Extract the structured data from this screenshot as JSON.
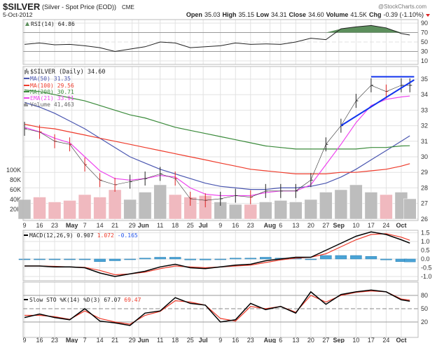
{
  "header": {
    "symbol": "$SILVER",
    "description": "(Silver - Spot Price (EOD))",
    "exchange": "CME",
    "date": "5-Oct-2012",
    "watermark": "@StockCharts.com",
    "open_label": "Open",
    "open": "35.03",
    "high_label": "High",
    "high": "35.15",
    "low_label": "Low",
    "low": "34.31",
    "close_label": "Close",
    "close": "34.60",
    "volume_label": "Volume",
    "volume": "41.5K",
    "chg_label": "Chg",
    "chg": "-0.39 (-1.10%)"
  },
  "colors": {
    "ma50": "#4a56b0",
    "ma100": "#ee3b2b",
    "ma200": "#3a8a3a",
    "ema21": "#ee44ee",
    "trend": "#1133ee",
    "vol_up": "#bdbdbd",
    "vol_down": "#f0b9bf",
    "rsi_fill_hi": "#5c8f5c",
    "rsi_fill_lo": "#d46a6a",
    "hist": "#4aa3d6"
  },
  "chart_data": {
    "type": "line",
    "title": "$SILVER (Daily) 34.60",
    "x_days": [
      0,
      7,
      14,
      21,
      28,
      35,
      42,
      49,
      56,
      63,
      70,
      77,
      84,
      91,
      98,
      105,
      112,
      119,
      126,
      133,
      140,
      147,
      154,
      161,
      168,
      175,
      179
    ],
    "x_ticks": [
      {
        "d": 0,
        "label": "9"
      },
      {
        "d": 7,
        "label": "16"
      },
      {
        "d": 14,
        "label": "23"
      },
      {
        "d": 22,
        "label": "May"
      },
      {
        "d": 28,
        "label": "7"
      },
      {
        "d": 35,
        "label": "14"
      },
      {
        "d": 42,
        "label": "21"
      },
      {
        "d": 50,
        "label": "29"
      },
      {
        "d": 53,
        "label": "Jun"
      },
      {
        "d": 63,
        "label": "11"
      },
      {
        "d": 70,
        "label": "18"
      },
      {
        "d": 77,
        "label": "25"
      },
      {
        "d": 83,
        "label": "Jul"
      },
      {
        "d": 91,
        "label": "9"
      },
      {
        "d": 98,
        "label": "16"
      },
      {
        "d": 105,
        "label": "23"
      },
      {
        "d": 114,
        "label": "Aug"
      },
      {
        "d": 119,
        "label": "6"
      },
      {
        "d": 126,
        "label": "13"
      },
      {
        "d": 133,
        "label": "20"
      },
      {
        "d": 140,
        "label": "27"
      },
      {
        "d": 146,
        "label": "Sep"
      },
      {
        "d": 154,
        "label": "10"
      },
      {
        "d": 161,
        "label": "17"
      },
      {
        "d": 168,
        "label": "24"
      },
      {
        "d": 175,
        "label": "Oct"
      }
    ],
    "price": {
      "ylim": [
        26,
        35.6
      ],
      "yticks": [
        26,
        27,
        28,
        29,
        30,
        31,
        32,
        33,
        34,
        35
      ],
      "close": [
        31.8,
        31.6,
        31.0,
        30.8,
        29.5,
        28.5,
        28.2,
        28.4,
        28.6,
        28.9,
        28.6,
        27.3,
        27.2,
        27.3,
        27.5,
        27.4,
        27.8,
        27.8,
        27.8,
        28.5,
        30.8,
        32.0,
        33.6,
        34.6,
        34.2,
        34.6,
        34.6
      ],
      "series": [
        {
          "name": "MA(50)",
          "last": "31.35",
          "color_key": "ma50",
          "values": [
            33.5,
            33.2,
            32.8,
            32.3,
            31.8,
            31.2,
            30.6,
            30.0,
            29.6,
            29.2,
            28.9,
            28.6,
            28.3,
            28.1,
            28.0,
            27.9,
            27.9,
            28.0,
            28.0,
            28.1,
            28.3,
            28.7,
            29.2,
            29.8,
            30.4,
            31.0,
            31.35
          ]
        },
        {
          "name": "MA(100)",
          "last": "29.56",
          "color_key": "ma100",
          "values": [
            32.1,
            31.9,
            31.8,
            31.6,
            31.4,
            31.2,
            31.0,
            30.8,
            30.6,
            30.4,
            30.2,
            30.0,
            29.8,
            29.6,
            29.4,
            29.2,
            29.1,
            29.0,
            28.9,
            28.9,
            28.9,
            29.0,
            29.0,
            29.1,
            29.2,
            29.4,
            29.56
          ]
        },
        {
          "name": "MA(200)",
          "last": "30.71",
          "color_key": "ma200",
          "values": [
            34.3,
            34.2,
            34.0,
            33.8,
            33.6,
            33.3,
            33.0,
            32.7,
            32.5,
            32.2,
            31.9,
            31.7,
            31.5,
            31.3,
            31.1,
            30.9,
            30.7,
            30.6,
            30.5,
            30.5,
            30.5,
            30.5,
            30.5,
            30.6,
            30.6,
            30.7,
            30.71
          ]
        },
        {
          "name": "EMA(21)",
          "last": "33.91",
          "color_key": "ema21",
          "values": [
            31.9,
            31.6,
            31.2,
            30.9,
            30.0,
            29.1,
            28.6,
            28.5,
            28.6,
            28.8,
            28.7,
            28.0,
            27.6,
            27.5,
            27.5,
            27.5,
            27.7,
            27.8,
            27.8,
            28.2,
            29.5,
            30.8,
            32.2,
            33.3,
            33.7,
            33.85,
            33.91
          ]
        }
      ],
      "trendlines": [
        {
          "name": "resistance",
          "d": [
            161,
            181
          ],
          "y": [
            35.15,
            35.15
          ]
        },
        {
          "name": "support",
          "d": [
            147,
            181
          ],
          "y": [
            32.0,
            34.95
          ]
        }
      ]
    },
    "volume": {
      "label": "Volume",
      "last": "41,463",
      "yticks": [
        {
          "v": 20,
          "label": "20K"
        },
        {
          "v": 40,
          "label": "40K"
        },
        {
          "v": 60,
          "label": "60K"
        },
        {
          "v": 80,
          "label": "80K"
        },
        {
          "v": 100,
          "label": "100K"
        }
      ],
      "values_k": [
        40,
        45,
        35,
        38,
        50,
        45,
        60,
        40,
        55,
        70,
        50,
        45,
        48,
        35,
        30,
        30,
        35,
        38,
        35,
        40,
        55,
        60,
        70,
        55,
        50,
        55,
        41.463
      ]
    },
    "rsi": {
      "label": "RSI(14)",
      "last": "64.86",
      "yticks": [
        10,
        30,
        50,
        70,
        90
      ],
      "values": [
        45,
        48,
        44,
        45,
        42,
        38,
        30,
        35,
        40,
        50,
        48,
        38,
        40,
        42,
        48,
        45,
        46,
        45,
        50,
        58,
        55,
        78,
        82,
        85,
        80,
        68,
        64.86
      ]
    },
    "macd": {
      "label": "MACD(12,26,9)",
      "macd_last": "0.907",
      "signal_last": "1.072",
      "hist_last": "-0.165",
      "yticks": [
        {
          "v": -1.0,
          "label": "-1.0"
        },
        {
          "v": -0.5,
          "label": "-0.5"
        },
        {
          "v": 0,
          "label": "0.0"
        },
        {
          "v": 0.5,
          "label": "0.5"
        },
        {
          "v": 1.0,
          "label": "1.0"
        },
        {
          "v": 1.5,
          "label": "1.5"
        }
      ],
      "macd": [
        -0.4,
        -0.4,
        -0.45,
        -0.45,
        -0.5,
        -0.8,
        -1.0,
        -0.85,
        -0.7,
        -0.45,
        -0.3,
        -0.5,
        -0.55,
        -0.45,
        -0.35,
        -0.3,
        -0.1,
        0,
        0.1,
        0.1,
        0.5,
        0.9,
        1.3,
        1.55,
        1.4,
        1.1,
        0.907
      ],
      "signal": [
        -0.4,
        -0.4,
        -0.42,
        -0.45,
        -0.48,
        -0.65,
        -0.9,
        -0.85,
        -0.75,
        -0.55,
        -0.4,
        -0.45,
        -0.5,
        -0.45,
        -0.4,
        -0.35,
        -0.2,
        -0.05,
        0.05,
        0.1,
        0.3,
        0.7,
        1.1,
        1.4,
        1.45,
        1.25,
        1.072
      ]
    },
    "sto": {
      "label": "Slow STO %K(14) %D(3)",
      "k_last": "67.07",
      "d_last": "69.47",
      "yticks": [
        20,
        50,
        80
      ],
      "k": [
        30,
        38,
        30,
        25,
        50,
        22,
        18,
        12,
        40,
        45,
        75,
        62,
        58,
        20,
        25,
        62,
        48,
        55,
        40,
        88,
        60,
        82,
        88,
        92,
        88,
        70,
        67.07
      ],
      "d": [
        35,
        35,
        32,
        26,
        45,
        28,
        20,
        15,
        35,
        44,
        68,
        65,
        58,
        28,
        22,
        55,
        50,
        55,
        42,
        80,
        65,
        80,
        87,
        90,
        88,
        72,
        69.47
      ]
    }
  }
}
